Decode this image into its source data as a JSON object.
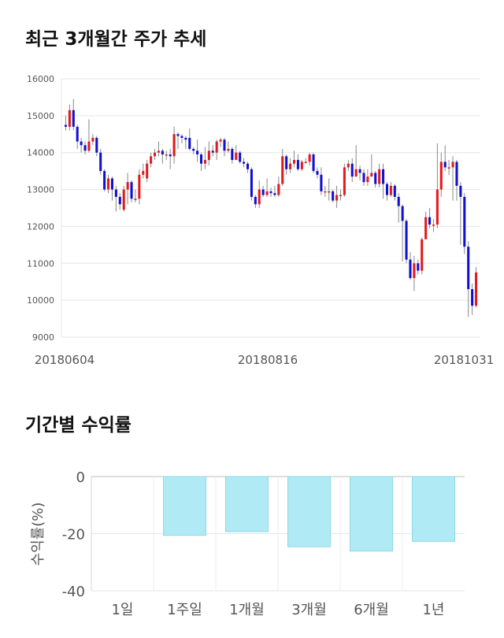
{
  "sections": {
    "price_trend_title": "최근 3개월간 주가 추세",
    "returns_title": "기간별 수익률"
  },
  "chart_data": [
    {
      "type": "candlestick",
      "title": "최근 3개월간 주가 추세",
      "y_ticks": [
        "16000",
        "15000",
        "14000",
        "13000",
        "12000",
        "11000",
        "10000",
        "9000"
      ],
      "ylim": [
        9000,
        16000
      ],
      "x_labels": [
        "20180604",
        "20180816",
        "20181031"
      ],
      "grid": true,
      "colors": {
        "up": "#e31a1c",
        "down": "#1010d0",
        "wick": "#888888"
      },
      "candles": [
        [
          14750,
          14700,
          15000,
          14600
        ],
        [
          14700,
          15150,
          15300,
          14600
        ],
        [
          15150,
          14700,
          15450,
          14600
        ],
        [
          14700,
          14300,
          14750,
          14100
        ],
        [
          14300,
          14200,
          14400,
          14000
        ],
        [
          14200,
          14050,
          14300,
          13950
        ],
        [
          14050,
          14300,
          14900,
          14000
        ],
        [
          14300,
          14400,
          14500,
          14200
        ],
        [
          14400,
          14000,
          14450,
          13900
        ],
        [
          14000,
          13500,
          14100,
          13400
        ],
        [
          13500,
          13000,
          13550,
          12950
        ],
        [
          13000,
          13300,
          13400,
          12900
        ],
        [
          13300,
          13000,
          13350,
          12700
        ],
        [
          13000,
          12800,
          13100,
          12400
        ],
        [
          12800,
          12600,
          12900,
          12450
        ],
        [
          12450,
          13000,
          13100,
          12400
        ],
        [
          13000,
          13200,
          13450,
          12600
        ],
        [
          13200,
          12750,
          13250,
          12650
        ],
        [
          12750,
          12750,
          13000,
          12650
        ],
        [
          12750,
          13400,
          13550,
          12600
        ],
        [
          13400,
          13500,
          13700,
          13300
        ],
        [
          13300,
          13700,
          13800,
          13200
        ],
        [
          13700,
          13900,
          14000,
          13600
        ],
        [
          13900,
          14000,
          14100,
          13800
        ],
        [
          14000,
          14050,
          14300,
          13900
        ],
        [
          14050,
          13950,
          14100,
          13700
        ],
        [
          13950,
          13950,
          14050,
          13800
        ],
        [
          13950,
          13900,
          14100,
          13550
        ],
        [
          13900,
          14500,
          14700,
          13700
        ],
        [
          14500,
          14450,
          14550,
          14100
        ],
        [
          14450,
          14400,
          14500,
          14250
        ],
        [
          14400,
          14350,
          14450,
          14100
        ],
        [
          14400,
          14100,
          14650,
          14050
        ],
        [
          14100,
          14050,
          14150,
          13950
        ],
        [
          14050,
          13950,
          14350,
          13750
        ],
        [
          13950,
          13700,
          14000,
          13500
        ],
        [
          13700,
          13800,
          14150,
          13550
        ],
        [
          13800,
          14050,
          14300,
          13650
        ],
        [
          14050,
          14000,
          14200,
          13900
        ],
        [
          14000,
          14300,
          14350,
          13800
        ],
        [
          14300,
          14350,
          14400,
          14150
        ],
        [
          14350,
          14050,
          14400,
          13900
        ],
        [
          14050,
          14100,
          14300,
          14000
        ],
        [
          14100,
          13800,
          14150,
          13700
        ],
        [
          13800,
          14000,
          14200,
          13800
        ],
        [
          14000,
          13750,
          14050,
          13700
        ],
        [
          13750,
          13700,
          13850,
          13600
        ],
        [
          13700,
          13550,
          13750,
          13450
        ],
        [
          13550,
          12800,
          13600,
          12700
        ],
        [
          12800,
          12600,
          12850,
          12500
        ],
        [
          12600,
          13000,
          13250,
          12500
        ],
        [
          13000,
          12850,
          13100,
          12800
        ],
        [
          12850,
          12950,
          13300,
          12800
        ],
        [
          12950,
          12900,
          13050,
          12800
        ],
        [
          12900,
          12850,
          13100,
          12800
        ],
        [
          12850,
          13150,
          13350,
          12800
        ],
        [
          13150,
          13900,
          14100,
          13100
        ],
        [
          13900,
          13550,
          13950,
          13400
        ],
        [
          13550,
          13700,
          13850,
          13450
        ],
        [
          13700,
          13800,
          14050,
          13600
        ],
        [
          13800,
          13550,
          13950,
          13500
        ],
        [
          13550,
          13750,
          13800,
          13500
        ],
        [
          13750,
          13750,
          13850,
          13700
        ],
        [
          13750,
          13950,
          14000,
          13650
        ],
        [
          13950,
          13500,
          14000,
          13450
        ],
        [
          13500,
          13400,
          13600,
          13300
        ],
        [
          13400,
          12950,
          13600,
          12850
        ],
        [
          12950,
          12950,
          13100,
          12800
        ],
        [
          12950,
          12950,
          13300,
          12700
        ],
        [
          12950,
          12700,
          13000,
          12650
        ],
        [
          12700,
          12850,
          13100,
          12500
        ],
        [
          12850,
          12850,
          13000,
          12700
        ],
        [
          12850,
          13600,
          13700,
          12800
        ],
        [
          13600,
          13700,
          13800,
          13500
        ],
        [
          13700,
          13350,
          13850,
          13200
        ],
        [
          13350,
          13550,
          14200,
          13350
        ],
        [
          13550,
          13450,
          13650,
          13250
        ],
        [
          13450,
          13200,
          13550,
          13100
        ],
        [
          13200,
          13350,
          13550,
          13100
        ],
        [
          13350,
          13450,
          13950,
          13350
        ],
        [
          13450,
          13150,
          13500,
          13050
        ],
        [
          13150,
          13550,
          13700,
          13050
        ],
        [
          13550,
          13150,
          13700,
          12750
        ],
        [
          13150,
          12850,
          13200,
          12700
        ],
        [
          12850,
          13100,
          13200,
          12800
        ],
        [
          13100,
          12800,
          13150,
          12700
        ],
        [
          12800,
          12550,
          12900,
          12100
        ],
        [
          12550,
          12150,
          12600,
          11050
        ],
        [
          12150,
          11100,
          12200,
          11000
        ],
        [
          11100,
          10600,
          11300,
          10550
        ],
        [
          10600,
          11000,
          11200,
          10250
        ],
        [
          11000,
          10800,
          11100,
          10700
        ],
        [
          10800,
          11650,
          11700,
          10700
        ],
        [
          11650,
          12250,
          12400,
          11900
        ],
        [
          12250,
          12050,
          12500,
          11950
        ],
        [
          12050,
          12050,
          12200,
          11850
        ],
        [
          12050,
          13000,
          14250,
          11950
        ],
        [
          13000,
          13750,
          14000,
          12800
        ],
        [
          13750,
          13600,
          14200,
          13500
        ],
        [
          13600,
          13600,
          13800,
          13400
        ],
        [
          13600,
          13750,
          13900,
          12700
        ],
        [
          13750,
          13100,
          13800,
          12700
        ],
        [
          13100,
          12800,
          13200,
          11500
        ],
        [
          12800,
          11450,
          12900,
          11250
        ],
        [
          11450,
          10300,
          11600,
          9550
        ],
        [
          10300,
          9850,
          10450,
          9600
        ],
        [
          9850,
          10750,
          10900,
          9800
        ]
      ]
    },
    {
      "type": "bar",
      "title": "기간별 수익률",
      "categories": [
        "1일",
        "1주일",
        "1개월",
        "3개월",
        "6개월",
        "1년"
      ],
      "values": [
        0,
        -20.6,
        -19.3,
        -24.6,
        -26.1,
        -22.7
      ],
      "ylabel": "수익률(%)",
      "y_ticks": [
        "0",
        "-20",
        "-40"
      ],
      "ylim": [
        -40,
        0
      ],
      "grid": true,
      "colors": {
        "bar": "#b0ebf5",
        "bar_stroke": "#8fd8e6"
      }
    }
  ]
}
